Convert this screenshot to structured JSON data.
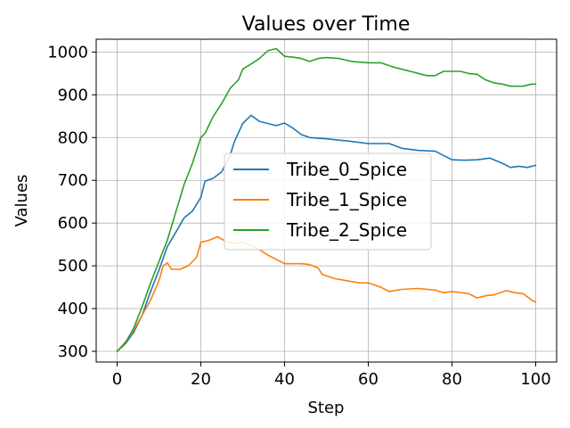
{
  "chart_data": {
    "type": "line",
    "title": "Values over Time",
    "xlabel": "Step",
    "ylabel": "Values",
    "xlim": [
      -5,
      105
    ],
    "ylim": [
      275,
      1030
    ],
    "x_ticks": [
      0,
      20,
      40,
      60,
      80,
      100
    ],
    "y_ticks": [
      300,
      400,
      500,
      600,
      700,
      800,
      900,
      1000
    ],
    "grid": true,
    "legend_position": "center",
    "series": [
      {
        "name": "Tribe_0_Spice",
        "color": "#1f77b4",
        "points": [
          [
            0,
            300
          ],
          [
            2,
            318
          ],
          [
            4,
            345
          ],
          [
            6,
            385
          ],
          [
            8,
            440
          ],
          [
            10,
            490
          ],
          [
            12,
            545
          ],
          [
            14,
            578
          ],
          [
            16,
            612
          ],
          [
            18,
            628
          ],
          [
            20,
            660
          ],
          [
            21,
            698
          ],
          [
            23,
            705
          ],
          [
            25,
            720
          ],
          [
            27,
            758
          ],
          [
            28,
            790
          ],
          [
            30,
            833
          ],
          [
            32,
            852
          ],
          [
            34,
            838
          ],
          [
            36,
            833
          ],
          [
            38,
            828
          ],
          [
            40,
            834
          ],
          [
            42,
            822
          ],
          [
            44,
            807
          ],
          [
            46,
            800
          ],
          [
            50,
            797
          ],
          [
            55,
            792
          ],
          [
            60,
            786
          ],
          [
            65,
            786
          ],
          [
            68,
            775
          ],
          [
            72,
            770
          ],
          [
            76,
            768
          ],
          [
            78,
            758
          ],
          [
            80,
            748
          ],
          [
            83,
            747
          ],
          [
            86,
            748
          ],
          [
            89,
            752
          ],
          [
            92,
            740
          ],
          [
            94,
            730
          ],
          [
            96,
            733
          ],
          [
            98,
            730
          ],
          [
            100,
            735
          ]
        ]
      },
      {
        "name": "Tribe_1_Spice",
        "color": "#ff7f0e",
        "points": [
          [
            0,
            300
          ],
          [
            2,
            322
          ],
          [
            4,
            350
          ],
          [
            6,
            385
          ],
          [
            8,
            420
          ],
          [
            10,
            465
          ],
          [
            11,
            500
          ],
          [
            12,
            507
          ],
          [
            13,
            492
          ],
          [
            15,
            492
          ],
          [
            17,
            500
          ],
          [
            19,
            520
          ],
          [
            20,
            555
          ],
          [
            22,
            560
          ],
          [
            24,
            568
          ],
          [
            26,
            557
          ],
          [
            28,
            552
          ],
          [
            30,
            555
          ],
          [
            32,
            548
          ],
          [
            34,
            538
          ],
          [
            36,
            525
          ],
          [
            38,
            515
          ],
          [
            40,
            505
          ],
          [
            42,
            505
          ],
          [
            44,
            505
          ],
          [
            46,
            503
          ],
          [
            48,
            495
          ],
          [
            49,
            480
          ],
          [
            52,
            470
          ],
          [
            55,
            465
          ],
          [
            58,
            460
          ],
          [
            60,
            460
          ],
          [
            63,
            450
          ],
          [
            65,
            440
          ],
          [
            68,
            445
          ],
          [
            72,
            447
          ],
          [
            76,
            443
          ],
          [
            78,
            437
          ],
          [
            80,
            440
          ],
          [
            84,
            435
          ],
          [
            86,
            425
          ],
          [
            88,
            430
          ],
          [
            90,
            432
          ],
          [
            93,
            442
          ],
          [
            95,
            437
          ],
          [
            97,
            435
          ],
          [
            99,
            420
          ],
          [
            100,
            415
          ]
        ]
      },
      {
        "name": "Tribe_2_Spice",
        "color": "#2ca02c",
        "points": [
          [
            0,
            300
          ],
          [
            2,
            320
          ],
          [
            4,
            355
          ],
          [
            6,
            405
          ],
          [
            8,
            460
          ],
          [
            10,
            510
          ],
          [
            12,
            560
          ],
          [
            14,
            625
          ],
          [
            16,
            690
          ],
          [
            18,
            740
          ],
          [
            20,
            800
          ],
          [
            21,
            810
          ],
          [
            23,
            850
          ],
          [
            25,
            880
          ],
          [
            27,
            915
          ],
          [
            29,
            935
          ],
          [
            30,
            960
          ],
          [
            32,
            972
          ],
          [
            34,
            985
          ],
          [
            36,
            1003
          ],
          [
            38,
            1008
          ],
          [
            40,
            990
          ],
          [
            42,
            988
          ],
          [
            44,
            985
          ],
          [
            46,
            978
          ],
          [
            48,
            985
          ],
          [
            50,
            987
          ],
          [
            53,
            985
          ],
          [
            56,
            978
          ],
          [
            60,
            975
          ],
          [
            63,
            975
          ],
          [
            66,
            965
          ],
          [
            70,
            955
          ],
          [
            74,
            945
          ],
          [
            76,
            945
          ],
          [
            78,
            955
          ],
          [
            82,
            955
          ],
          [
            84,
            950
          ],
          [
            86,
            948
          ],
          [
            88,
            935
          ],
          [
            90,
            928
          ],
          [
            92,
            925
          ],
          [
            94,
            920
          ],
          [
            97,
            920
          ],
          [
            99,
            925
          ],
          [
            100,
            925
          ]
        ]
      }
    ]
  }
}
